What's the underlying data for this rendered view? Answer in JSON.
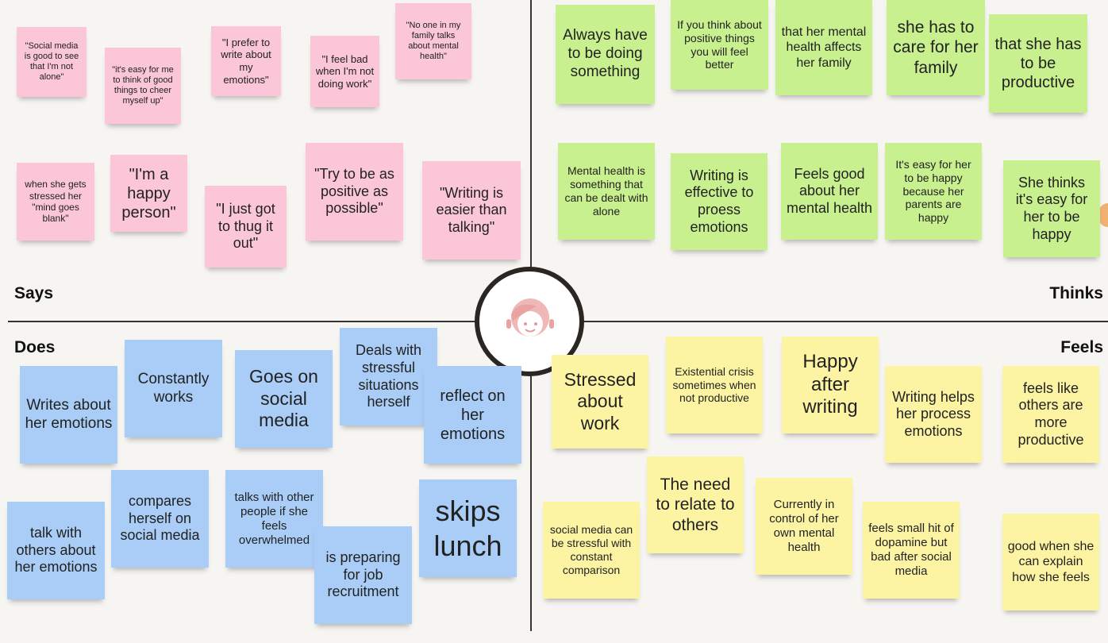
{
  "quadrants": [
    {
      "label": "Says",
      "notes": [
        "\"Social media is good to see that I'm not alone\"",
        "\"it's easy for me to think of good things to cheer myself up\"",
        "\"I prefer to write about my emotions\"",
        "\"I feel bad when I'm not doing work\"",
        "\"No one in my family talks about mental health\"",
        "when she gets stressed her \"mind goes blank\"",
        "\"I'm a happy person\"",
        "\"I just got to thug it out\"",
        "\"Try to be as positive as possible\"",
        "\"Writing is easier than talking\""
      ]
    },
    {
      "label": "Thinks",
      "notes": [
        "Always have to be doing something",
        "If you think about positive things you will feel better",
        "that her mental health affects her family",
        "she has to care for her family",
        "that she has to be productive",
        "Mental health is something that can be dealt with alone",
        "Writing is effective to proess emotions",
        "Feels good about her mental health",
        "It's easy for her to be happy because her parents are happy",
        "She thinks it's easy for her to be happy"
      ]
    },
    {
      "label": "Does",
      "notes": [
        "Writes about her emotions",
        "Constantly works",
        "Goes on social media",
        "Deals with stressful situations herself",
        "reflect on her emotions",
        "compares herself on social media",
        "talks with other people if she feels overwhelmed",
        "talk with others about her emotions",
        "is preparing for job recruitment",
        "skips lunch"
      ]
    },
    {
      "label": "Feels",
      "notes": [
        "Stressed about work",
        "Existential crisis sometimes when not productive",
        "Happy after writing",
        "Writing helps her process emotions",
        "feels like others are more productive",
        "The need to relate to others",
        "Currently in control of her own mental health",
        "social media can be stressful with constant comparison",
        "feels small hit of dopamine but bad after social media",
        "good when she can explain how she feels"
      ]
    }
  ]
}
